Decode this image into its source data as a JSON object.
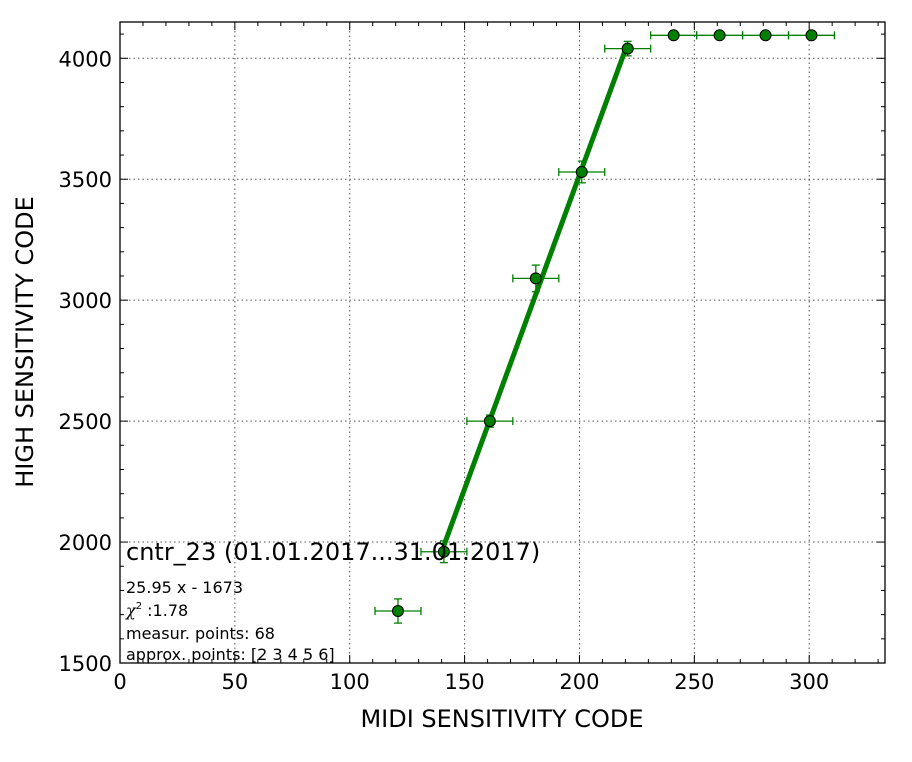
{
  "chart_data": {
    "type": "scatter",
    "xlabel": "MIDI SENSITIVITY CODE",
    "ylabel": "HIGH SENSITIVITY CODE",
    "xlim": [
      0,
      333
    ],
    "ylim": [
      1500,
      4150
    ],
    "xticks": [
      0,
      50,
      100,
      150,
      200,
      250,
      300
    ],
    "yticks": [
      1500,
      2000,
      2500,
      3000,
      3500,
      4000
    ],
    "grid": true,
    "legend": "none",
    "colors": {
      "points": "#008000",
      "fit_line": "#008000",
      "point_edge": "#000000"
    },
    "series": [
      {
        "points": [
          {
            "x": 121,
            "y": 1715,
            "xerr": 10,
            "yerr": 50
          },
          {
            "x": 141,
            "y": 1960,
            "xerr": 10,
            "yerr": 45
          },
          {
            "x": 161,
            "y": 2500,
            "xerr": 10,
            "yerr": 25
          },
          {
            "x": 181,
            "y": 3090,
            "xerr": 10,
            "yerr": 55
          },
          {
            "x": 201,
            "y": 3530,
            "xerr": 10,
            "yerr": 45
          },
          {
            "x": 221,
            "y": 4040,
            "xerr": 10,
            "yerr": 30
          },
          {
            "x": 241,
            "y": 4095,
            "xerr": 10,
            "yerr": 0
          },
          {
            "x": 261,
            "y": 4095,
            "xerr": 10,
            "yerr": 0
          },
          {
            "x": 281,
            "y": 4095,
            "xerr": 10,
            "yerr": 0
          },
          {
            "x": 301,
            "y": 4095,
            "xerr": 10,
            "yerr": 0
          }
        ]
      }
    ],
    "fit": {
      "x": [
        141,
        221
      ],
      "slope": 25.95,
      "intercept": -1673
    },
    "annotations": {
      "title": "cntr_23 (01.01.2017...31.01.2017)",
      "equation": "25.95 x - 1673",
      "chi2_label": "χ",
      "chi2_sup": "2",
      "chi2_value": " :1.78",
      "measur_points": "measur. points: 68",
      "approx_points": "approx. points: [2 3 4 5 6]"
    }
  }
}
